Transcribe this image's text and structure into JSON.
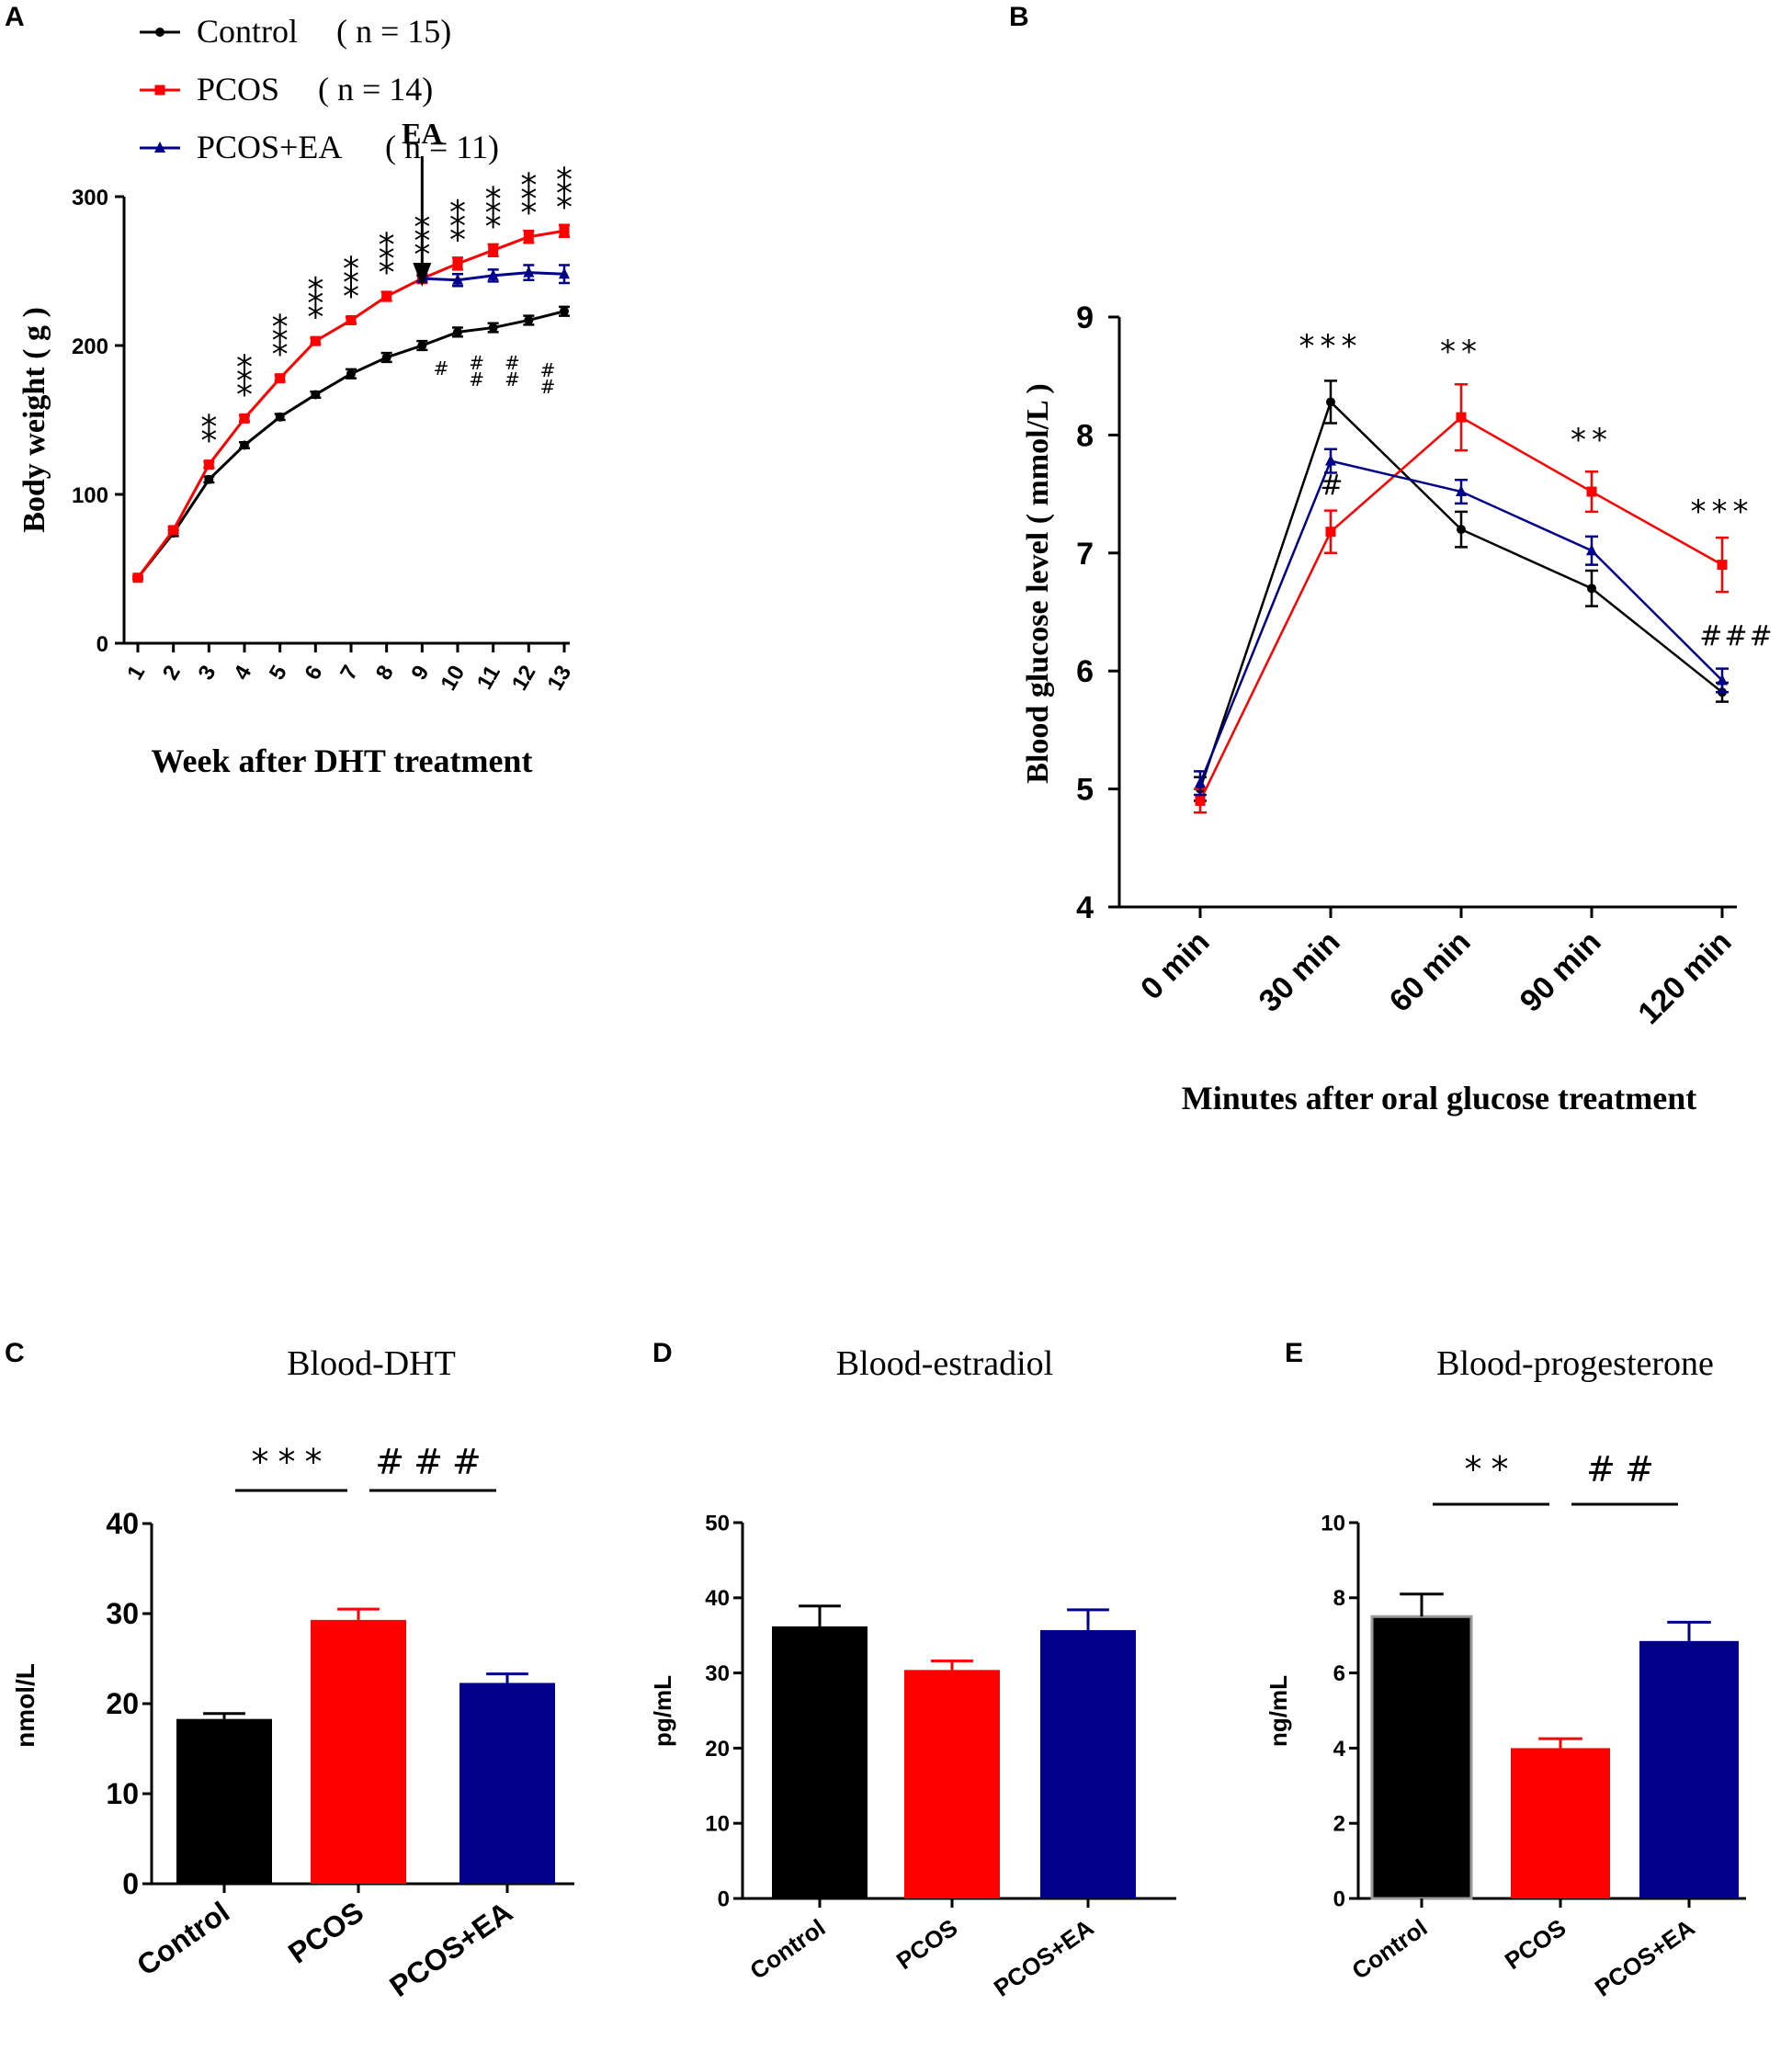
{
  "panels": {
    "A": {
      "label": "A",
      "ea_label": "EA"
    },
    "B": {
      "label": "B"
    },
    "C": {
      "label": "C"
    },
    "D": {
      "label": "D"
    },
    "E": {
      "label": "E"
    }
  },
  "colors": {
    "control": "#000000",
    "pcos": "#ff0000",
    "pcos_ea": "#00008b",
    "sig_red": "#ff0000",
    "sig_blue": "#1e50e6",
    "sig_navy": "#00008b"
  },
  "chart_data": [
    {
      "id": "A",
      "type": "line",
      "title": "",
      "xlabel": "Week after DHT treatment",
      "ylabel": "Body weight ( g )",
      "x": [
        1,
        2,
        3,
        4,
        5,
        6,
        7,
        8,
        9,
        10,
        11,
        12,
        13
      ],
      "xlim": [
        1,
        13
      ],
      "ylim": [
        0,
        300
      ],
      "yticks": [
        0,
        100,
        200,
        300
      ],
      "legend": [
        {
          "name": "Control",
          "n_label": "( n = 15)"
        },
        {
          "name": "PCOS",
          "n_label": "( n = 14)"
        },
        {
          "name": "PCOS+EA",
          "n_label": "( n = 11)"
        }
      ],
      "series": [
        {
          "name": "Control",
          "values": [
            44,
            74,
            110,
            133,
            152,
            167,
            181,
            192,
            200,
            209,
            212,
            217,
            223
          ],
          "errors": [
            1,
            2,
            2,
            2,
            2,
            2,
            3,
            3,
            3,
            3,
            3,
            3,
            3
          ]
        },
        {
          "name": "PCOS",
          "values": [
            44,
            76,
            120,
            151,
            178,
            203,
            217,
            233,
            245,
            255,
            264,
            273,
            277
          ],
          "errors": [
            1,
            2,
            2,
            2,
            2,
            2,
            2,
            3,
            3,
            4,
            4,
            4,
            4
          ]
        },
        {
          "name": "PCOS+EA",
          "x": [
            9,
            10,
            11,
            12,
            13
          ],
          "values": [
            245,
            244,
            247,
            249,
            248
          ],
          "errors": [
            2,
            4,
            4,
            5,
            6
          ]
        }
      ],
      "annotation": "EA",
      "annotation_x": 9,
      "significance_red": [
        {
          "x": 3,
          "text": "**"
        },
        {
          "x": 4,
          "text": "***"
        },
        {
          "x": 5,
          "text": "***"
        },
        {
          "x": 6,
          "text": "***"
        },
        {
          "x": 7,
          "text": "***"
        },
        {
          "x": 8,
          "text": "***"
        },
        {
          "x": 9,
          "text": "***"
        },
        {
          "x": 10,
          "text": "***"
        },
        {
          "x": 11,
          "text": "***"
        },
        {
          "x": 12,
          "text": "***"
        },
        {
          "x": 13,
          "text": "***"
        }
      ],
      "significance_blue": [
        {
          "x": 10,
          "text": "#"
        },
        {
          "x": 11,
          "text": "##"
        },
        {
          "x": 12,
          "text": "##"
        },
        {
          "x": 13,
          "text": "##"
        }
      ]
    },
    {
      "id": "B",
      "type": "line",
      "title": "",
      "xlabel": "Minutes after oral  glucose treatment",
      "ylabel": "Blood glucose level ( mmol/L )",
      "categories": [
        "0  min",
        "30  min",
        "60  min",
        "90  min",
        "120  min"
      ],
      "ylim": [
        4,
        9
      ],
      "yticks": [
        4,
        5,
        6,
        7,
        8,
        9
      ],
      "series": [
        {
          "name": "Control",
          "values": [
            5.0,
            8.28,
            7.2,
            6.7,
            5.82
          ],
          "errors": [
            0.1,
            0.18,
            0.15,
            0.15,
            0.08
          ]
        },
        {
          "name": "PCOS",
          "values": [
            4.9,
            7.18,
            8.15,
            7.52,
            6.9
          ],
          "errors": [
            0.1,
            0.18,
            0.28,
            0.17,
            0.23
          ]
        },
        {
          "name": "PCOS+EA",
          "values": [
            5.05,
            7.78,
            7.52,
            7.02,
            5.92
          ],
          "errors": [
            0.1,
            0.1,
            0.1,
            0.12,
            0.1
          ]
        }
      ],
      "significance_red": [
        "***",
        "**",
        "**",
        "***"
      ],
      "significance_red_at": [
        1,
        2,
        3,
        4
      ],
      "significance_blue": [
        "#",
        "###"
      ],
      "significance_blue_at": [
        1,
        4
      ]
    },
    {
      "id": "C",
      "type": "bar",
      "title": "Blood-DHT",
      "xlabel": "",
      "ylabel": "nmol/L",
      "categories": [
        "Control",
        "PCOS",
        "PCOS+EA"
      ],
      "values": [
        18.3,
        29.3,
        22.3
      ],
      "errors": [
        0.6,
        1.2,
        1.0
      ],
      "ylim": [
        0,
        40
      ],
      "yticks": [
        0,
        10,
        20,
        30,
        40
      ],
      "significance": [
        {
          "text": "***",
          "between": [
            "Control",
            "PCOS"
          ]
        },
        {
          "text": "###",
          "between": [
            "PCOS",
            "PCOS+EA"
          ]
        }
      ]
    },
    {
      "id": "D",
      "type": "bar",
      "title": "Blood-estradiol",
      "xlabel": "",
      "ylabel": "pg/mL",
      "categories": [
        "Control",
        "PCOS",
        "PCOS+EA"
      ],
      "values": [
        36.2,
        30.4,
        35.7
      ],
      "errors": [
        2.7,
        1.2,
        2.7
      ],
      "ylim": [
        0,
        50
      ],
      "yticks": [
        0,
        10,
        20,
        30,
        40,
        50
      ]
    },
    {
      "id": "E",
      "type": "bar",
      "title": "Blood-progesterone",
      "xlabel": "",
      "ylabel": "ng/mL",
      "categories": [
        "Control",
        "PCOS",
        "PCOS+EA"
      ],
      "values": [
        7.5,
        4.0,
        6.85
      ],
      "errors": [
        0.6,
        0.25,
        0.5
      ],
      "ylim": [
        0,
        10
      ],
      "yticks": [
        0,
        2,
        4,
        6,
        8,
        10
      ],
      "significance": [
        {
          "text": "**",
          "between": [
            "Control",
            "PCOS"
          ]
        },
        {
          "text": "##",
          "between": [
            "PCOS",
            "PCOS+EA"
          ]
        }
      ]
    }
  ]
}
